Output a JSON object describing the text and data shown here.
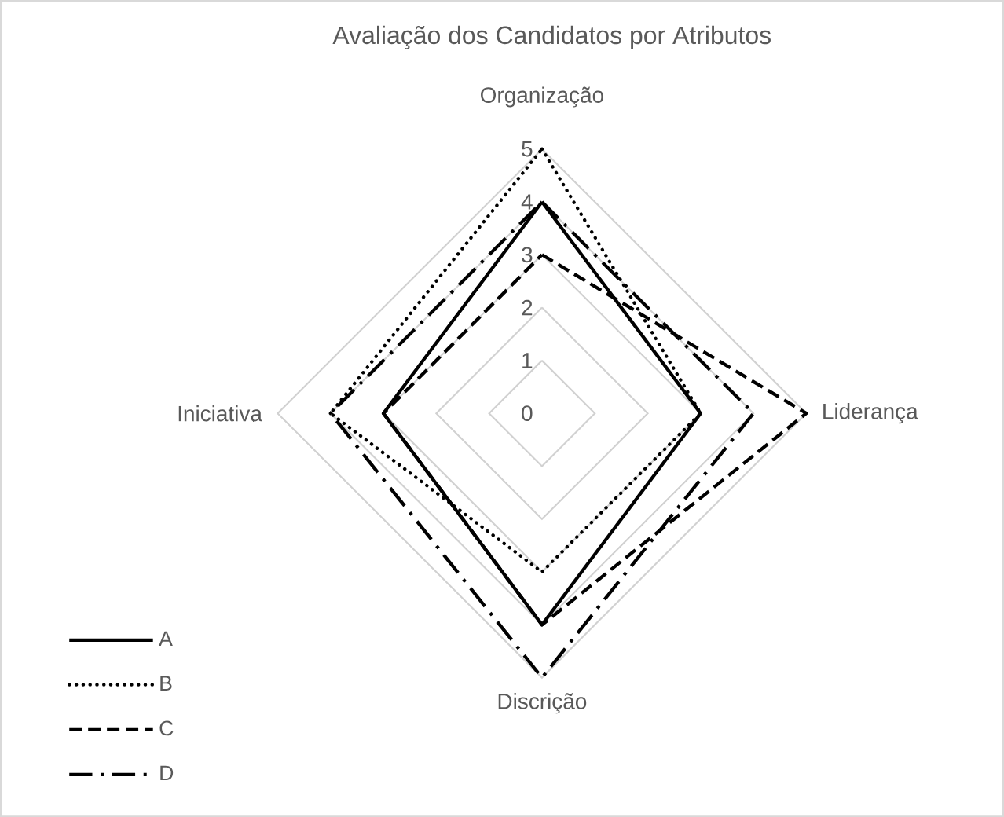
{
  "chart_data": {
    "type": "radar",
    "title": "Avaliação dos Candidatos por Atributos",
    "categories": [
      "Organização",
      "Liderança",
      "Discrição",
      "Iniciativa"
    ],
    "ylim": [
      0,
      5
    ],
    "yticks": [
      0,
      1,
      2,
      3,
      4,
      5
    ],
    "legend": "bottom left",
    "series": [
      {
        "name": "A",
        "color": "#000000",
        "line_style": "solid",
        "values": [
          4,
          3,
          4,
          3
        ]
      },
      {
        "name": "B",
        "color": "#000000",
        "line_style": "dotted",
        "values": [
          5,
          3,
          3,
          4
        ]
      },
      {
        "name": "C",
        "color": "#000000",
        "line_style": "dashed",
        "values": [
          3,
          5,
          4,
          3
        ]
      },
      {
        "name": "D",
        "color": "#000000",
        "line_style": "dashdot",
        "values": [
          4,
          4,
          5,
          4
        ]
      }
    ]
  }
}
